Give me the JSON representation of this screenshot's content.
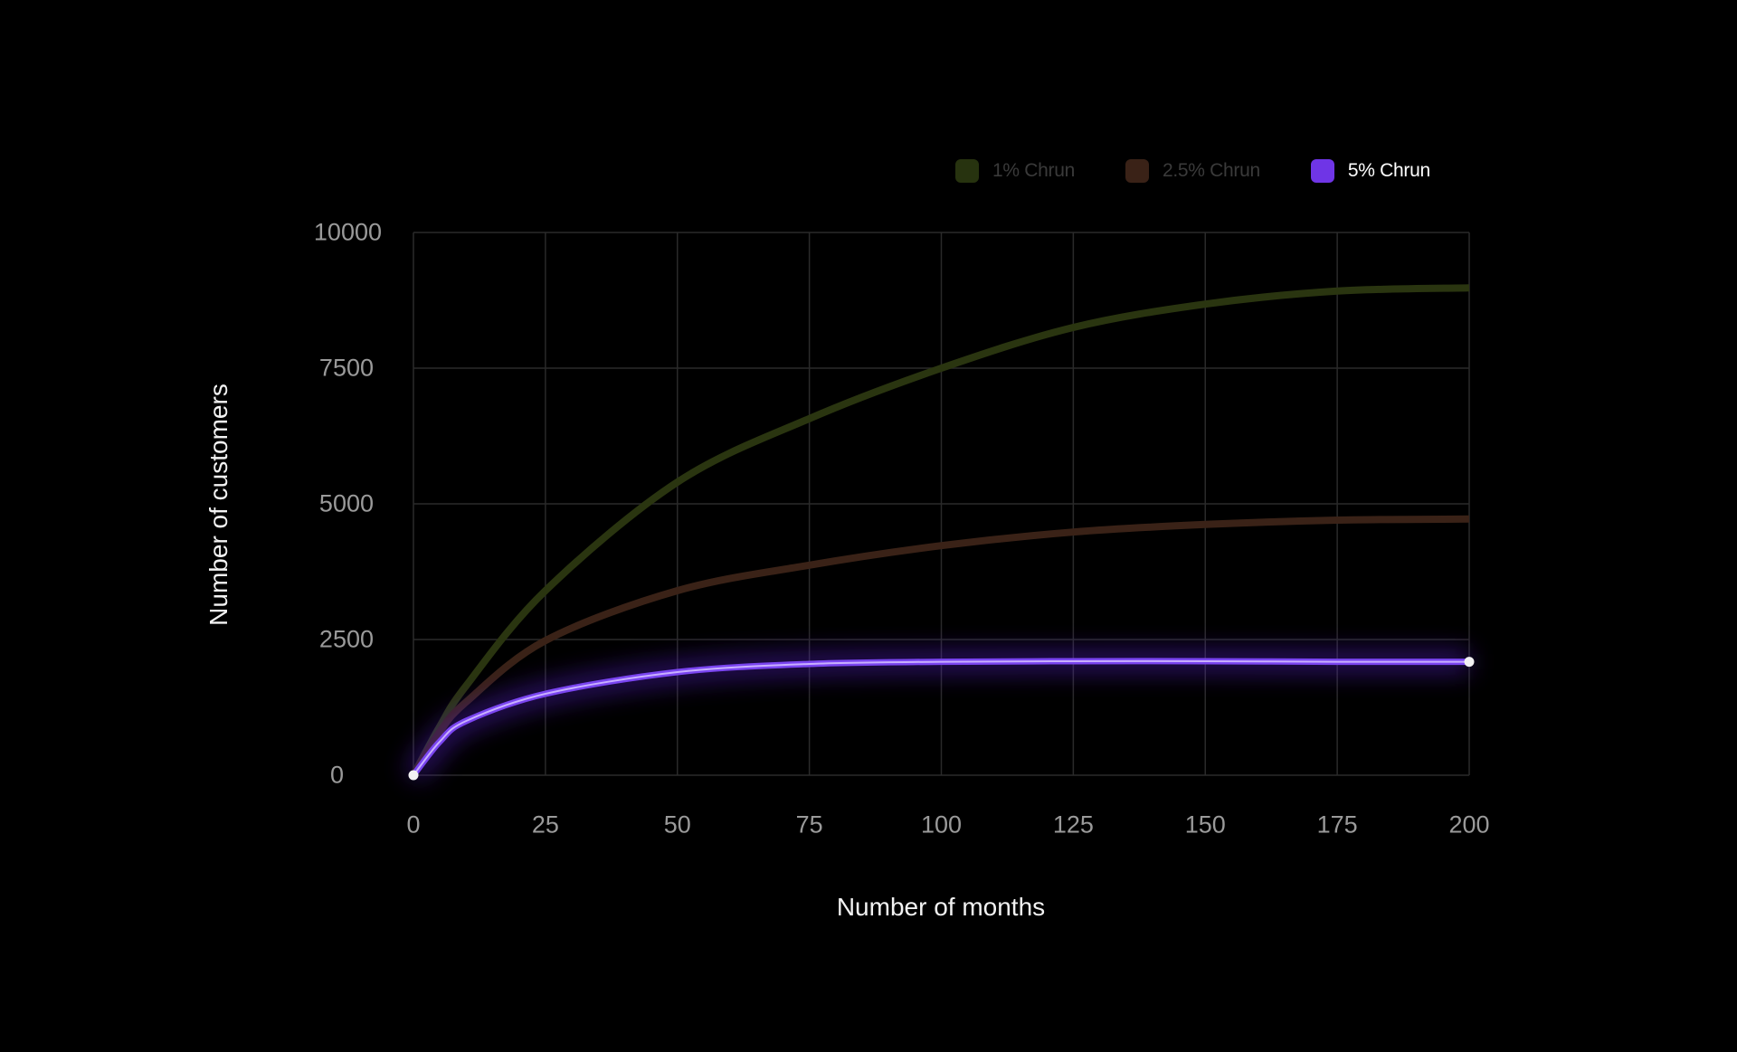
{
  "chart_data": {
    "type": "line",
    "title": "",
    "xlabel": "Number of months",
    "ylabel": "Number of customers",
    "xlim": [
      0,
      200
    ],
    "ylim": [
      0,
      10000
    ],
    "x_ticks": [
      "0",
      "25",
      "50",
      "75",
      "100",
      "125",
      "150",
      "175",
      "200"
    ],
    "y_ticks": [
      "0",
      "2500",
      "5000",
      "7500",
      "10000"
    ],
    "grid": true,
    "legend_position": "top-right",
    "x": [
      0,
      5,
      10,
      25,
      50,
      75,
      100,
      125,
      150,
      175,
      200
    ],
    "series": [
      {
        "name": "1% Chrun",
        "color": "#2a3510",
        "highlighted": false,
        "values": [
          0,
          900,
          1650,
          3400,
          5400,
          6570,
          7500,
          8250,
          8680,
          8920,
          8980
        ]
      },
      {
        "name": "2.5% Chrun",
        "color": "#3a2217",
        "highlighted": false,
        "values": [
          0,
          800,
          1350,
          2480,
          3400,
          3870,
          4230,
          4480,
          4620,
          4700,
          4720
        ]
      },
      {
        "name": "5% Chrun",
        "color": "#7a45f0",
        "highlighted": true,
        "values": [
          0,
          620,
          1000,
          1500,
          1900,
          2050,
          2090,
          2100,
          2100,
          2090,
          2090
        ]
      }
    ]
  },
  "legend": {
    "items": [
      {
        "label": "1% Chrun",
        "color": "#27330f",
        "text_color": "#3a3a3a"
      },
      {
        "label": "2.5% Chrun",
        "color": "#3a2217",
        "text_color": "#3a3a3a"
      },
      {
        "label": "5% Chrun",
        "color": "#6f35e6",
        "text_color": "#ffffff"
      }
    ]
  },
  "axes": {
    "xlabel": "Number of months",
    "ylabel": "Number of customers"
  },
  "colors": {
    "background": "#000000",
    "grid": "#2a2a2a",
    "tick_text": "#9a9a9a",
    "accent": "#7a45f0"
  }
}
